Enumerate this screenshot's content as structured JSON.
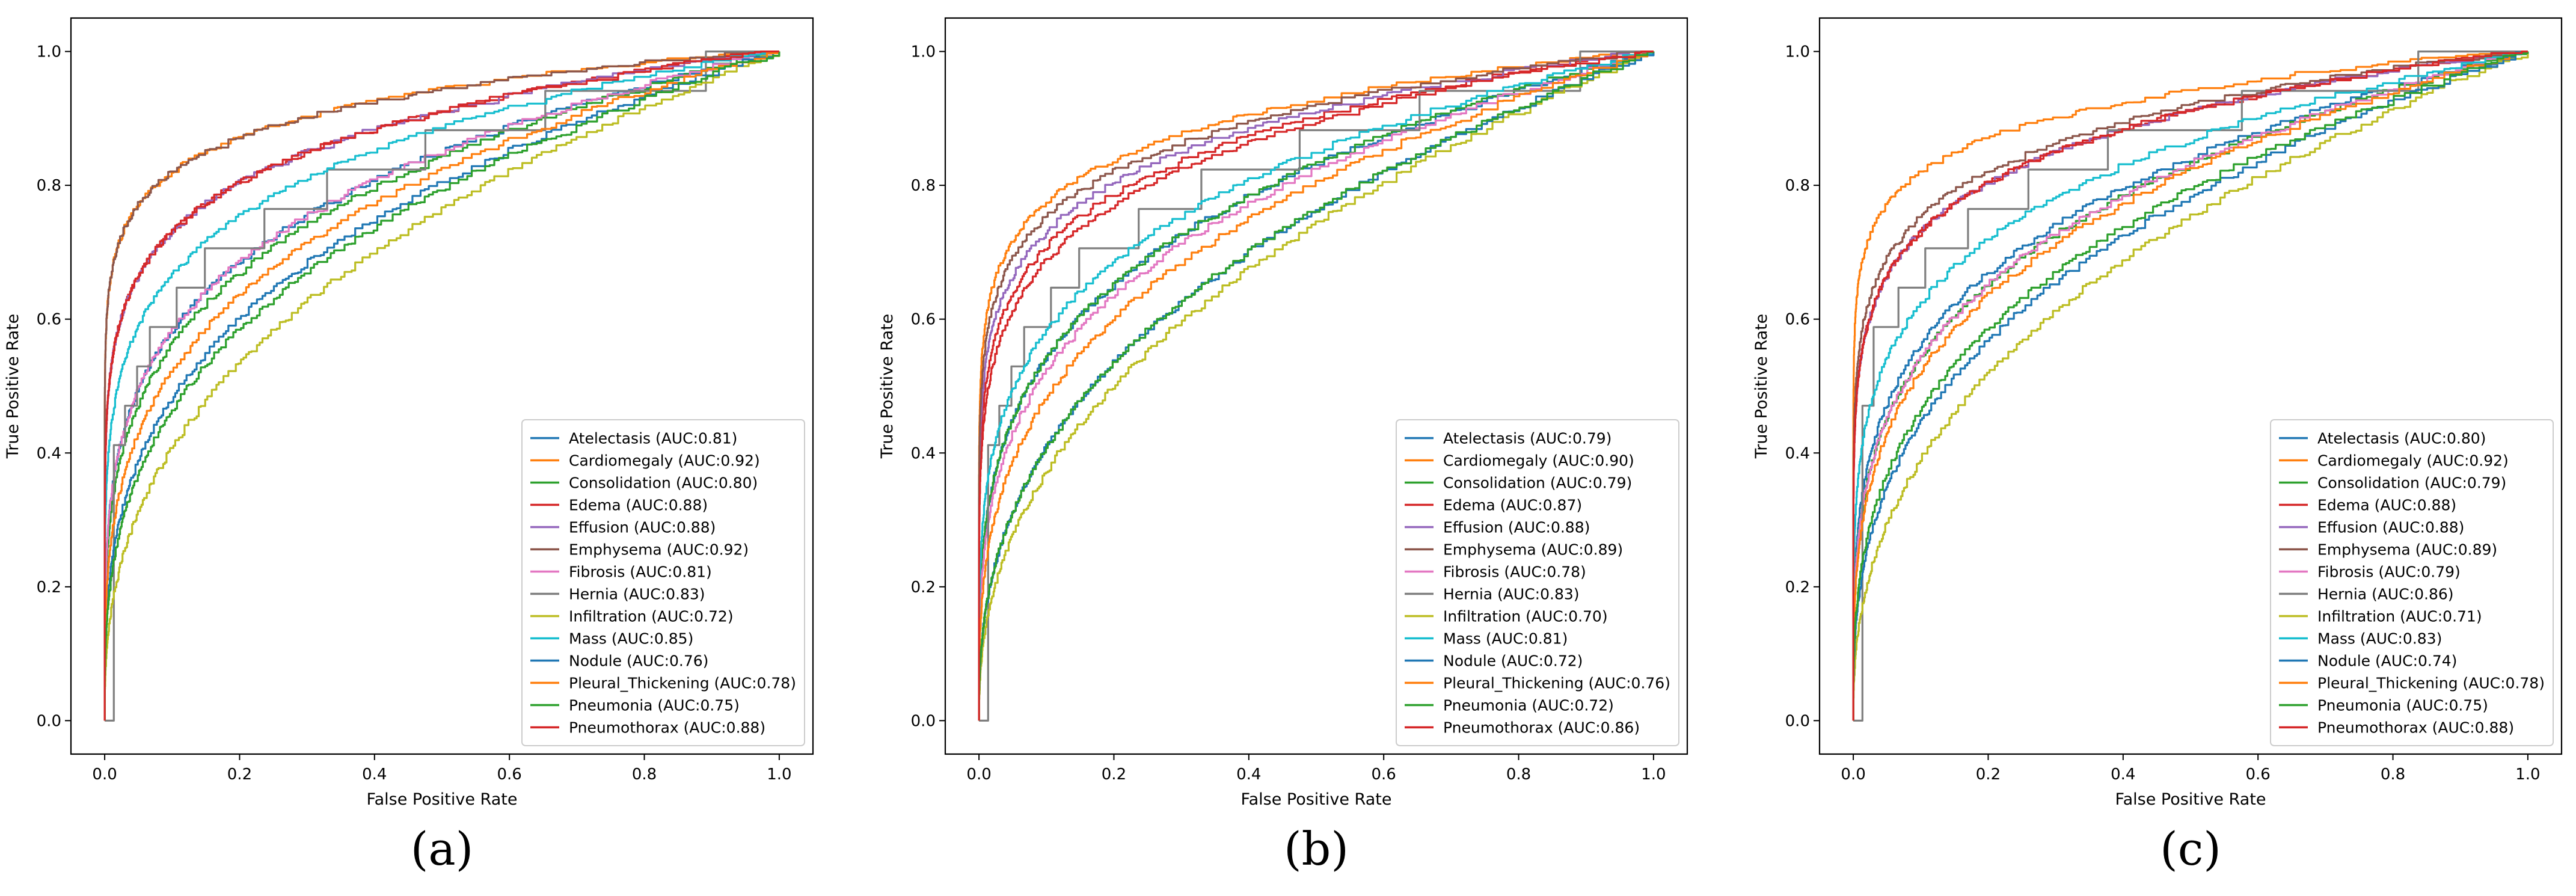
{
  "chart_data": [
    {
      "type": "line",
      "panel_label": "(a)",
      "xlabel": "False Positive Rate",
      "ylabel": "True Positive Rate",
      "xlim": [
        -0.05,
        1.05
      ],
      "ylim": [
        -0.05,
        1.05
      ],
      "xticks": [
        "0.0",
        "0.2",
        "0.4",
        "0.6",
        "0.8",
        "1.0"
      ],
      "yticks": [
        "0.0",
        "0.2",
        "0.4",
        "0.6",
        "0.8",
        "1.0"
      ],
      "grid": false,
      "legend_position": "lower right",
      "series": [
        {
          "name": "Atelectasis (AUC:0.81)",
          "color": "#1f77b4",
          "auc": 0.81
        },
        {
          "name": "Cardiomegaly (AUC:0.92)",
          "color": "#ff7f0e",
          "auc": 0.92
        },
        {
          "name": "Consolidation (AUC:0.80)",
          "color": "#2ca02c",
          "auc": 0.8
        },
        {
          "name": "Edema (AUC:0.88)",
          "color": "#d62728",
          "auc": 0.88
        },
        {
          "name": "Effusion (AUC:0.88)",
          "color": "#9467bd",
          "auc": 0.88
        },
        {
          "name": "Emphysema (AUC:0.92)",
          "color": "#8c564b",
          "auc": 0.92
        },
        {
          "name": "Fibrosis (AUC:0.81)",
          "color": "#e377c2",
          "auc": 0.81
        },
        {
          "name": "Hernia (AUC:0.83)",
          "color": "#7f7f7f",
          "auc": 0.83,
          "stepped": true
        },
        {
          "name": "Infiltration (AUC:0.72)",
          "color": "#bcbd22",
          "auc": 0.72
        },
        {
          "name": "Mass (AUC:0.85)",
          "color": "#17becf",
          "auc": 0.85
        },
        {
          "name": "Nodule (AUC:0.76)",
          "color": "#1f77b4",
          "auc": 0.76
        },
        {
          "name": "Pleural_Thickening (AUC:0.78)",
          "color": "#ff7f0e",
          "auc": 0.78
        },
        {
          "name": "Pneumonia (AUC:0.75)",
          "color": "#2ca02c",
          "auc": 0.75
        },
        {
          "name": "Pneumothorax (AUC:0.88)",
          "color": "#d62728",
          "auc": 0.88
        }
      ]
    },
    {
      "type": "line",
      "panel_label": "(b)",
      "xlabel": "False Positive Rate",
      "ylabel": "True Positive Rate",
      "xlim": [
        -0.05,
        1.05
      ],
      "ylim": [
        -0.05,
        1.05
      ],
      "xticks": [
        "0.0",
        "0.2",
        "0.4",
        "0.6",
        "0.8",
        "1.0"
      ],
      "yticks": [
        "0.0",
        "0.2",
        "0.4",
        "0.6",
        "0.8",
        "1.0"
      ],
      "grid": false,
      "legend_position": "lower right",
      "series": [
        {
          "name": "Atelectasis (AUC:0.79)",
          "color": "#1f77b4",
          "auc": 0.79
        },
        {
          "name": "Cardiomegaly (AUC:0.90)",
          "color": "#ff7f0e",
          "auc": 0.9
        },
        {
          "name": "Consolidation (AUC:0.79)",
          "color": "#2ca02c",
          "auc": 0.79
        },
        {
          "name": "Edema (AUC:0.87)",
          "color": "#d62728",
          "auc": 0.87
        },
        {
          "name": "Effusion (AUC:0.88)",
          "color": "#9467bd",
          "auc": 0.88
        },
        {
          "name": "Emphysema (AUC:0.89)",
          "color": "#8c564b",
          "auc": 0.89
        },
        {
          "name": "Fibrosis (AUC:0.78)",
          "color": "#e377c2",
          "auc": 0.78
        },
        {
          "name": "Hernia (AUC:0.83)",
          "color": "#7f7f7f",
          "auc": 0.83,
          "stepped": true
        },
        {
          "name": "Infiltration (AUC:0.70)",
          "color": "#bcbd22",
          "auc": 0.7
        },
        {
          "name": "Mass (AUC:0.81)",
          "color": "#17becf",
          "auc": 0.81
        },
        {
          "name": "Nodule (AUC:0.72)",
          "color": "#1f77b4",
          "auc": 0.72
        },
        {
          "name": "Pleural_Thickening (AUC:0.76)",
          "color": "#ff7f0e",
          "auc": 0.76
        },
        {
          "name": "Pneumonia (AUC:0.72)",
          "color": "#2ca02c",
          "auc": 0.72
        },
        {
          "name": "Pneumothorax (AUC:0.86)",
          "color": "#d62728",
          "auc": 0.86
        }
      ]
    },
    {
      "type": "line",
      "panel_label": "(c)",
      "xlabel": "False Positive Rate",
      "ylabel": "True Positive Rate",
      "xlim": [
        -0.05,
        1.05
      ],
      "ylim": [
        -0.05,
        1.05
      ],
      "xticks": [
        "0.0",
        "0.2",
        "0.4",
        "0.6",
        "0.8",
        "1.0"
      ],
      "yticks": [
        "0.0",
        "0.2",
        "0.4",
        "0.6",
        "0.8",
        "1.0"
      ],
      "grid": false,
      "legend_position": "lower right",
      "series": [
        {
          "name": "Atelectasis (AUC:0.80)",
          "color": "#1f77b4",
          "auc": 0.8
        },
        {
          "name": "Cardiomegaly (AUC:0.92)",
          "color": "#ff7f0e",
          "auc": 0.92
        },
        {
          "name": "Consolidation (AUC:0.79)",
          "color": "#2ca02c",
          "auc": 0.79
        },
        {
          "name": "Edema (AUC:0.88)",
          "color": "#d62728",
          "auc": 0.88
        },
        {
          "name": "Effusion (AUC:0.88)",
          "color": "#9467bd",
          "auc": 0.88
        },
        {
          "name": "Emphysema (AUC:0.89)",
          "color": "#8c564b",
          "auc": 0.89
        },
        {
          "name": "Fibrosis (AUC:0.79)",
          "color": "#e377c2",
          "auc": 0.79
        },
        {
          "name": "Hernia (AUC:0.86)",
          "color": "#7f7f7f",
          "auc": 0.86,
          "stepped": true
        },
        {
          "name": "Infiltration (AUC:0.71)",
          "color": "#bcbd22",
          "auc": 0.71
        },
        {
          "name": "Mass (AUC:0.83)",
          "color": "#17becf",
          "auc": 0.83
        },
        {
          "name": "Nodule (AUC:0.74)",
          "color": "#1f77b4",
          "auc": 0.74
        },
        {
          "name": "Pleural_Thickening (AUC:0.78)",
          "color": "#ff7f0e",
          "auc": 0.78
        },
        {
          "name": "Pneumonia (AUC:0.75)",
          "color": "#2ca02c",
          "auc": 0.75
        },
        {
          "name": "Pneumothorax (AUC:0.88)",
          "color": "#d62728",
          "auc": 0.88
        }
      ]
    }
  ]
}
